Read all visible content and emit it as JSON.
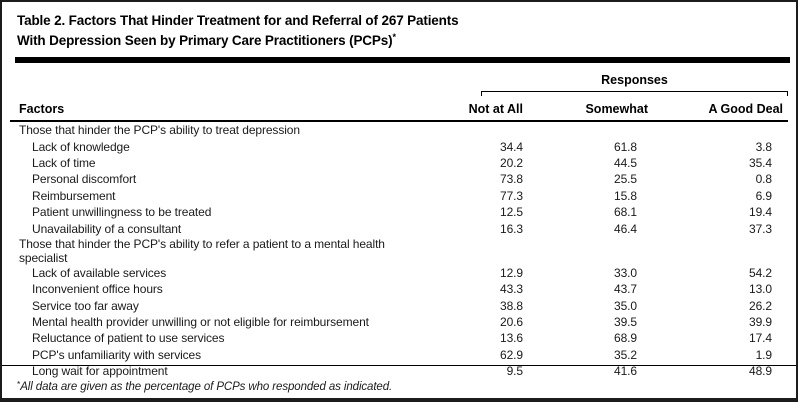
{
  "title": {
    "line1": "Table 2. Factors That Hinder Treatment for and Referral of 267 Patients",
    "line2": "With Depression Seen by Primary Care Practitioners (PCPs)",
    "marker": "*"
  },
  "table": {
    "spanner": "Responses",
    "col1_header": "Factors",
    "columns": [
      "Not at All",
      "Somewhat",
      "A Good Deal"
    ],
    "rows": [
      {
        "label": "Those that hinder the PCP's ability to treat depression",
        "section": true,
        "values": []
      },
      {
        "label": "Lack of knowledge",
        "section": false,
        "values": [
          "34.4",
          "61.8",
          "3.8"
        ]
      },
      {
        "label": "Lack of time",
        "section": false,
        "values": [
          "20.2",
          "44.5",
          "35.4"
        ]
      },
      {
        "label": "Personal discomfort",
        "section": false,
        "values": [
          "73.8",
          "25.5",
          "0.8"
        ]
      },
      {
        "label": "Reimbursement",
        "section": false,
        "values": [
          "77.3",
          "15.8",
          "6.9"
        ]
      },
      {
        "label": "Patient unwillingness to be treated",
        "section": false,
        "values": [
          "12.5",
          "68.1",
          "19.4"
        ]
      },
      {
        "label": "Unavailability of a consultant",
        "section": false,
        "values": [
          "16.3",
          "46.4",
          "37.3"
        ]
      },
      {
        "label": "Those that hinder the PCP's ability to refer a patient to a mental health specialist",
        "section": true,
        "values": []
      },
      {
        "label": "Lack of available services",
        "section": false,
        "values": [
          "12.9",
          "33.0",
          "54.2"
        ]
      },
      {
        "label": "Inconvenient office hours",
        "section": false,
        "values": [
          "43.3",
          "43.7",
          "13.0"
        ]
      },
      {
        "label": "Service too far away",
        "section": false,
        "values": [
          "38.8",
          "35.0",
          "26.2"
        ]
      },
      {
        "label": "Mental health provider unwilling or not eligible for reimbursement",
        "section": false,
        "values": [
          "20.6",
          "39.5",
          "39.9"
        ]
      },
      {
        "label": "Reluctance of patient to use services",
        "section": false,
        "values": [
          "13.6",
          "68.9",
          "17.4"
        ]
      },
      {
        "label": "PCP's unfamiliarity with services",
        "section": false,
        "values": [
          "62.9",
          "35.2",
          "1.9"
        ]
      },
      {
        "label": "Long wait for appointment",
        "section": false,
        "values": [
          "9.5",
          "41.6",
          "48.9"
        ]
      }
    ]
  },
  "footnote": {
    "marker": "*",
    "text": "All data are given as the percentage of PCPs who responded as indicated."
  },
  "colors": {
    "background": "#ffffff",
    "text": "#1a1a1a",
    "rule": "#000000"
  }
}
